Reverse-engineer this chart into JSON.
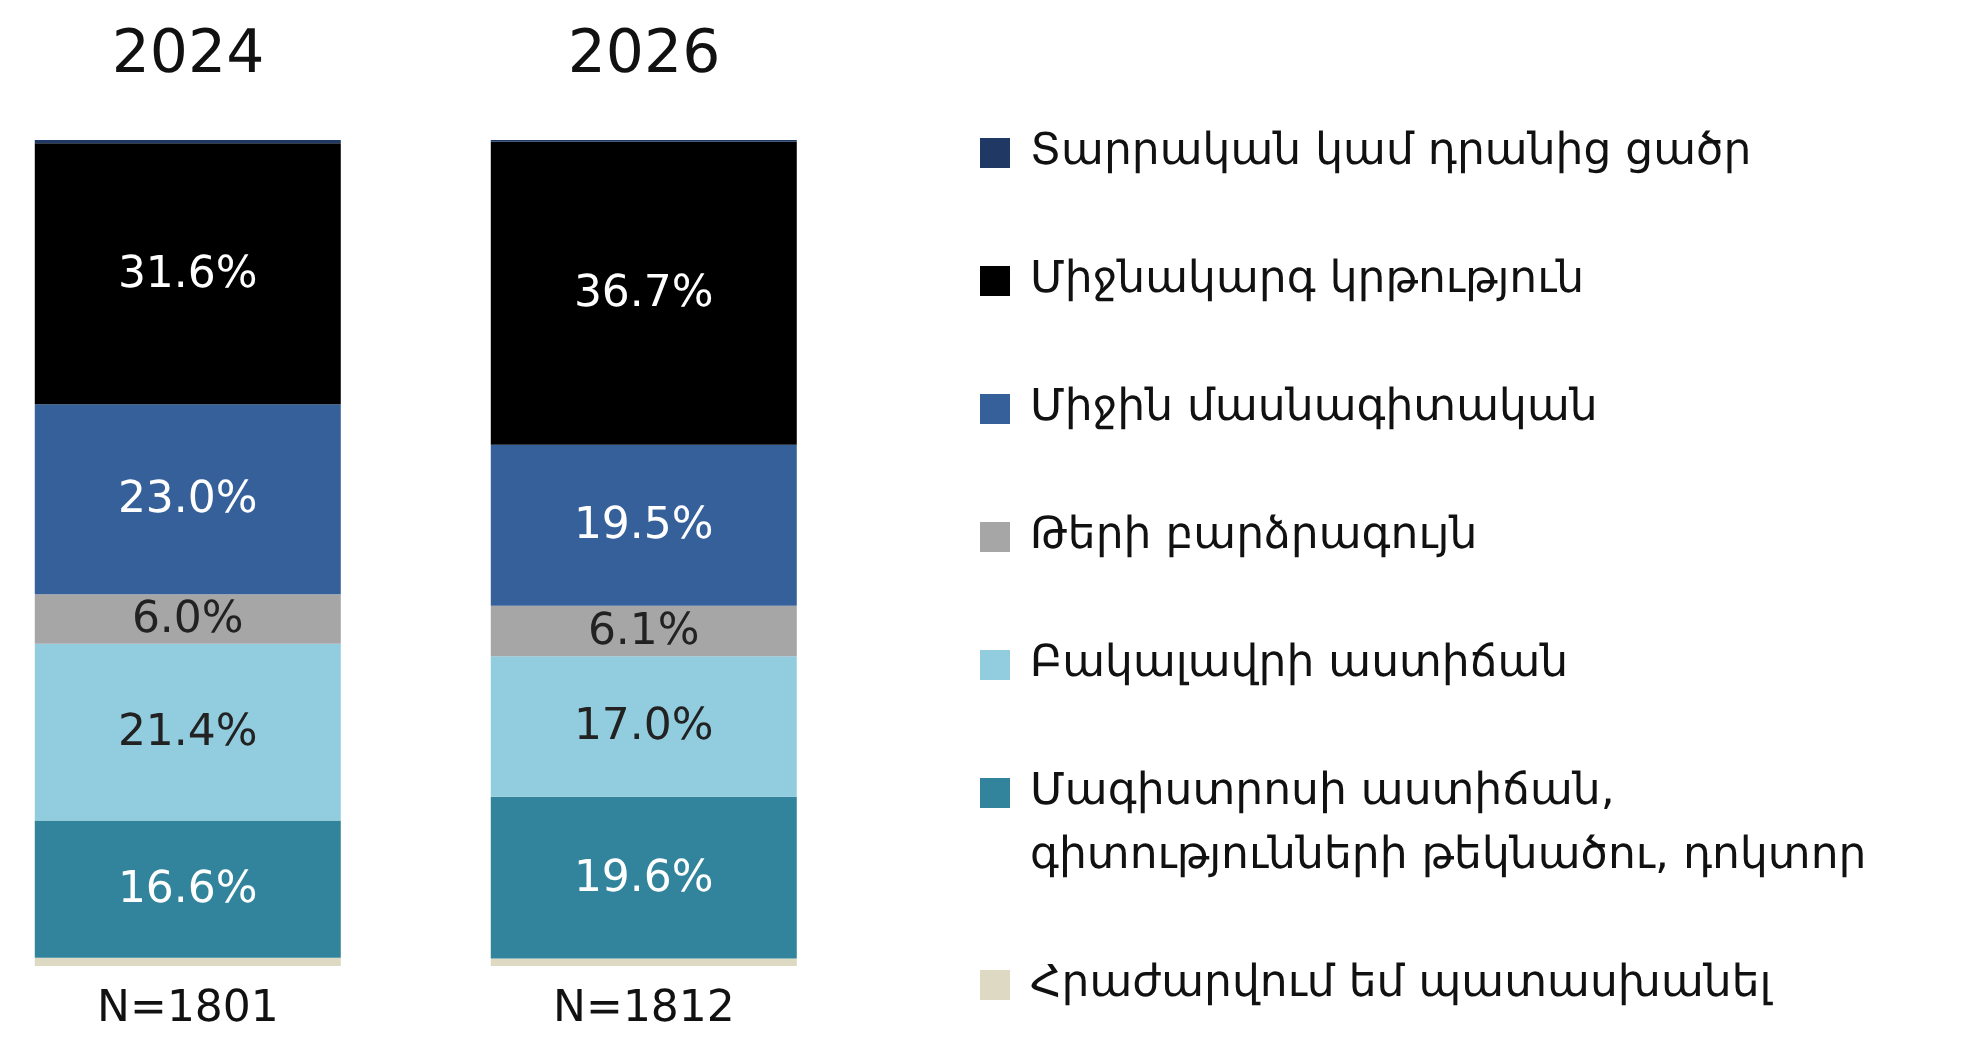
{
  "chart_data": {
    "type": "bar",
    "stacked": true,
    "categories": [
      "2024",
      "2026"
    ],
    "series": [
      {
        "name": "Հրաժարվում եմ պատասխանել",
        "color": "#ddd9c3",
        "values": [
          1.0,
          0.9
        ],
        "value_labels": [
          null,
          null
        ]
      },
      {
        "name": "Մագիստրոսի աստիճան, գիտությունների թեկնածու, դոկտոր",
        "color": "#31849b",
        "values": [
          16.6,
          19.6
        ],
        "value_labels": [
          "16.6%",
          "19.6%"
        ]
      },
      {
        "name": "Բակալավրի աստիճան",
        "color": "#92cddf",
        "values": [
          21.4,
          17.0
        ],
        "value_labels": [
          "21.4%",
          "17.0%"
        ]
      },
      {
        "name": "Թերի բարձրագույն",
        "color": "#a6a6a6",
        "values": [
          6.0,
          6.1
        ],
        "value_labels": [
          "6.0%",
          "6.1%"
        ]
      },
      {
        "name": "Միջին մասնագիտական",
        "color": "#36609a",
        "values": [
          23.0,
          19.5
        ],
        "value_labels": [
          "23.0%",
          "19.5%"
        ]
      },
      {
        "name": "Միջնակարգ կրթություն",
        "color": "#000000",
        "values": [
          31.6,
          36.7
        ],
        "value_labels": [
          "31.6%",
          "36.7%"
        ]
      },
      {
        "name": "Տարրական կամ դրանից ցածր",
        "color": "#1f3864",
        "values": [
          0.4,
          0.2
        ],
        "value_labels": [
          null,
          null
        ]
      }
    ],
    "annotations": [
      "N=1801",
      "N=1812"
    ],
    "legend": "right",
    "grid": false,
    "tick_labels": "x"
  }
}
